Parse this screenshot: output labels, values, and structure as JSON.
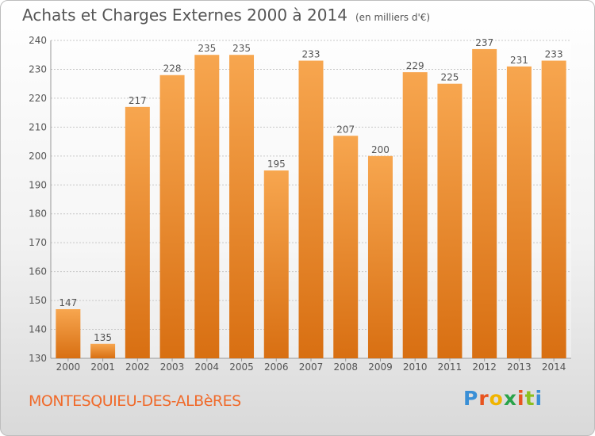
{
  "header": {
    "title": "Achats et Charges Externes 2000 à 2014",
    "unit": "(en milliers d'€)"
  },
  "footer": {
    "location": "MONTESQUIEU-DES-ALBèRES",
    "brand": "Proxiti"
  },
  "colors": {
    "bar": "#f0912f",
    "bar_top": "#f7a64f",
    "bar_bottom": "#d86f12",
    "text": "#555555",
    "location": "#f06a2a",
    "brand_letters": [
      "#3a8fd6",
      "#e8541f",
      "#f0b400",
      "#2aa34a",
      "#e8541f",
      "#8bbf1f",
      "#3a8fd6"
    ]
  },
  "chart_data": {
    "type": "bar",
    "categories": [
      "2000",
      "2001",
      "2002",
      "2003",
      "2004",
      "2005",
      "2006",
      "2007",
      "2008",
      "2009",
      "2010",
      "2011",
      "2012",
      "2013",
      "2014"
    ],
    "values": [
      147,
      135,
      217,
      228,
      235,
      235,
      195,
      233,
      207,
      200,
      229,
      225,
      237,
      231,
      233
    ],
    "ylim": [
      130,
      240
    ],
    "yticks": [
      130,
      140,
      150,
      160,
      170,
      180,
      190,
      200,
      210,
      220,
      230,
      240
    ],
    "grid": true,
    "data_labels": true
  }
}
